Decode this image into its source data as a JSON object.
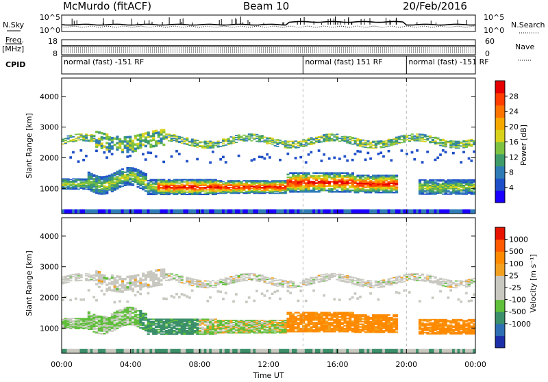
{
  "header": {
    "station": "McMurdo (fitACF)",
    "beam": "Beam 10",
    "date": "20/Feb/2016"
  },
  "top_panels": {
    "nsky_label": "N.Sky",
    "nsearch_label": "N.Search",
    "nsearch_style": "dotted",
    "nsky_ticks": [
      "10^5",
      "10^0"
    ],
    "nsearch_ticks": [
      "10^5",
      "10^0"
    ],
    "freq_label": "Freq.",
    "freq_units": "[MHz]",
    "freq_ticks": [
      "18",
      "8"
    ],
    "nave_label": "Nave",
    "nave_ticks": [
      "60",
      "0"
    ],
    "cpid_label": "CPID",
    "cpid_segments": [
      {
        "label": "normal (fast) -151 RF",
        "start_hour": 0,
        "end_hour": 14
      },
      {
        "label": "normal (fast) 151 RF",
        "start_hour": 14,
        "end_hour": 20
      },
      {
        "label": "normal (fast) -151 RF",
        "start_hour": 20,
        "end_hour": 24
      }
    ]
  },
  "chart_data": [
    {
      "type": "heatmap",
      "name": "power",
      "ylabel": "Slant Range [km]",
      "ylim": [
        180,
        4600
      ],
      "yticks": [
        1000,
        2000,
        3000,
        4000
      ],
      "xlim_hours": [
        0,
        24
      ],
      "colorbar": {
        "label": "Power [dB]",
        "ticks": [
          "4",
          "8",
          "12",
          "16",
          "20",
          "24",
          "28"
        ],
        "colors": [
          "#1a00ff",
          "#1f4fc8",
          "#2e7bb6",
          "#3f9c6a",
          "#7dc241",
          "#d8d21a",
          "#f5a800",
          "#ff7300",
          "#ff3d00",
          "#e60000"
        ],
        "range": [
          0,
          32
        ]
      }
    },
    {
      "type": "heatmap",
      "name": "velocity",
      "ylabel": "Slant Range [km]",
      "ylim": [
        180,
        4600
      ],
      "yticks": [
        1000,
        2000,
        3000,
        4000
      ],
      "xlim_hours": [
        0,
        24
      ],
      "colorbar": {
        "label": "Velocity [m s⁻¹]",
        "ticks": [
          "1000",
          "500",
          "100",
          "25",
          "-25",
          "-100",
          "-500",
          "-1000"
        ],
        "colors": [
          "#1c2fa8",
          "#2e6fb4",
          "#3b8f6a",
          "#5fbf3a",
          "#c8c8c0",
          "#c8c8c0",
          "#f2a020",
          "#ff8a00",
          "#ff5a00",
          "#e61400"
        ]
      }
    }
  ],
  "xaxis": {
    "ticks": [
      "00:00",
      "04:00",
      "08:00",
      "12:00",
      "16:00",
      "20:00",
      "00:00"
    ],
    "label": "Time UT"
  }
}
